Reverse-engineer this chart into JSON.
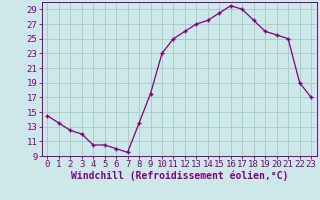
{
  "x": [
    0,
    1,
    2,
    3,
    4,
    5,
    6,
    7,
    8,
    9,
    10,
    11,
    12,
    13,
    14,
    15,
    16,
    17,
    18,
    19,
    20,
    21,
    22,
    23
  ],
  "y": [
    14.5,
    13.5,
    12.5,
    12.0,
    10.5,
    10.5,
    10.0,
    9.5,
    13.5,
    17.5,
    23.0,
    25.0,
    26.0,
    27.0,
    27.5,
    28.5,
    29.5,
    29.0,
    27.5,
    26.0,
    25.5,
    25.0,
    19.0,
    17.0
  ],
  "line_color": "#800080",
  "marker": "+",
  "marker_size": 3,
  "background_color": "#cce8e8",
  "grid_color": "#aacccc",
  "xlabel": "Windchill (Refroidissement éolien,°C)",
  "xlim": [
    -0.5,
    23.5
  ],
  "ylim": [
    9,
    30
  ],
  "yticks": [
    9,
    11,
    13,
    15,
    17,
    19,
    21,
    23,
    25,
    27,
    29
  ],
  "xticks": [
    0,
    1,
    2,
    3,
    4,
    5,
    6,
    7,
    8,
    9,
    10,
    11,
    12,
    13,
    14,
    15,
    16,
    17,
    18,
    19,
    20,
    21,
    22,
    23
  ],
  "tick_color": "#800080",
  "label_color": "#800080",
  "font_size_ticks": 6.5,
  "font_size_label": 7.0,
  "linewidth": 0.9,
  "markeredgewidth": 1.0
}
